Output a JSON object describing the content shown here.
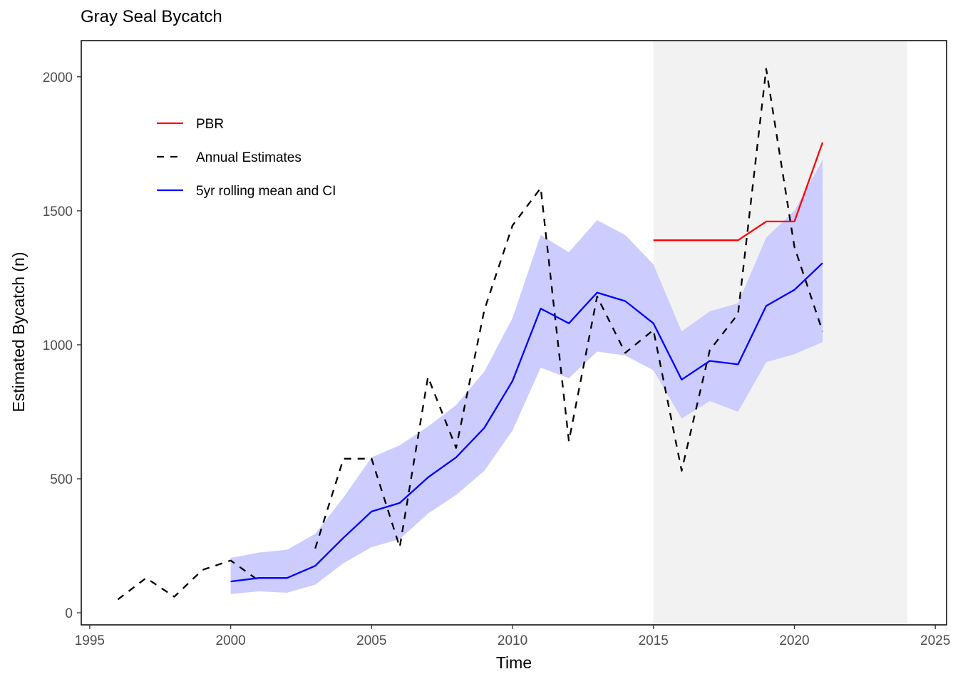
{
  "chart_data": {
    "type": "line",
    "title": "Gray Seal Bycatch",
    "xlabel": "Time",
    "ylabel": "Estimated Bycatch (n)",
    "xlim": [
      1994.7,
      2025.4
    ],
    "ylim": [
      -45,
      2135
    ],
    "x_ticks": [
      1995,
      2000,
      2005,
      2010,
      2015,
      2020,
      2025
    ],
    "y_ticks": [
      0,
      500,
      1000,
      1500,
      2000
    ],
    "shaded_region": {
      "x_start": 2015,
      "x_end": 2024,
      "color": "#f2f2f2"
    },
    "legend": {
      "position": "top-left",
      "entries": [
        {
          "label": "PBR",
          "color": "#ff0000",
          "style": "solid"
        },
        {
          "label": "Annual Estimates",
          "color": "#000000",
          "style": "dashed"
        },
        {
          "label": "5yr rolling mean and CI",
          "color": "#0000ff",
          "style": "solid"
        }
      ]
    },
    "series": [
      {
        "name": "Annual Estimates",
        "color": "#000000",
        "style": "dashed",
        "x": [
          1996,
          1997,
          1998,
          1999,
          2000,
          2001,
          2002,
          2003,
          2004,
          2005,
          2006,
          2007,
          2008,
          2009,
          2010,
          2011,
          2012,
          2013,
          2014,
          2015,
          2016,
          2017,
          2018,
          2019,
          2020,
          2021
        ],
        "y": [
          50,
          130,
          60,
          160,
          195,
          120,
          null,
          240,
          575,
          575,
          245,
          880,
          615,
          1130,
          1445,
          1585,
          640,
          1180,
          970,
          1055,
          530,
          980,
          1115,
          2030,
          1365,
          1050
        ]
      },
      {
        "name": "5yr rolling mean and CI",
        "color": "#0000ff",
        "style": "solid",
        "x": [
          2000,
          2001,
          2002,
          2003,
          2004,
          2005,
          2006,
          2007,
          2008,
          2009,
          2010,
          2011,
          2012,
          2013,
          2014,
          2015,
          2016,
          2017,
          2018,
          2019,
          2020,
          2021
        ],
        "y": [
          117,
          130,
          130,
          175,
          280,
          378,
          410,
          505,
          580,
          690,
          865,
          1135,
          1080,
          1195,
          1163,
          1080,
          870,
          940,
          927,
          1145,
          1205,
          1305
        ],
        "ci_lower": [
          70,
          80,
          75,
          105,
          185,
          245,
          275,
          370,
          440,
          530,
          680,
          915,
          875,
          975,
          960,
          905,
          725,
          790,
          750,
          935,
          965,
          1010
        ],
        "ci_upper": [
          205,
          225,
          235,
          295,
          430,
          580,
          625,
          695,
          775,
          900,
          1100,
          1410,
          1345,
          1465,
          1410,
          1300,
          1050,
          1125,
          1155,
          1400,
          1500,
          1690
        ],
        "ci_color": "#ccccff"
      },
      {
        "name": "PBR",
        "color": "#ff0000",
        "style": "solid",
        "x": [
          2015,
          2016,
          2017,
          2018,
          2019,
          2020,
          2021
        ],
        "y": [
          1390,
          1390,
          1390,
          1390,
          1460,
          1460,
          1755
        ]
      }
    ]
  }
}
